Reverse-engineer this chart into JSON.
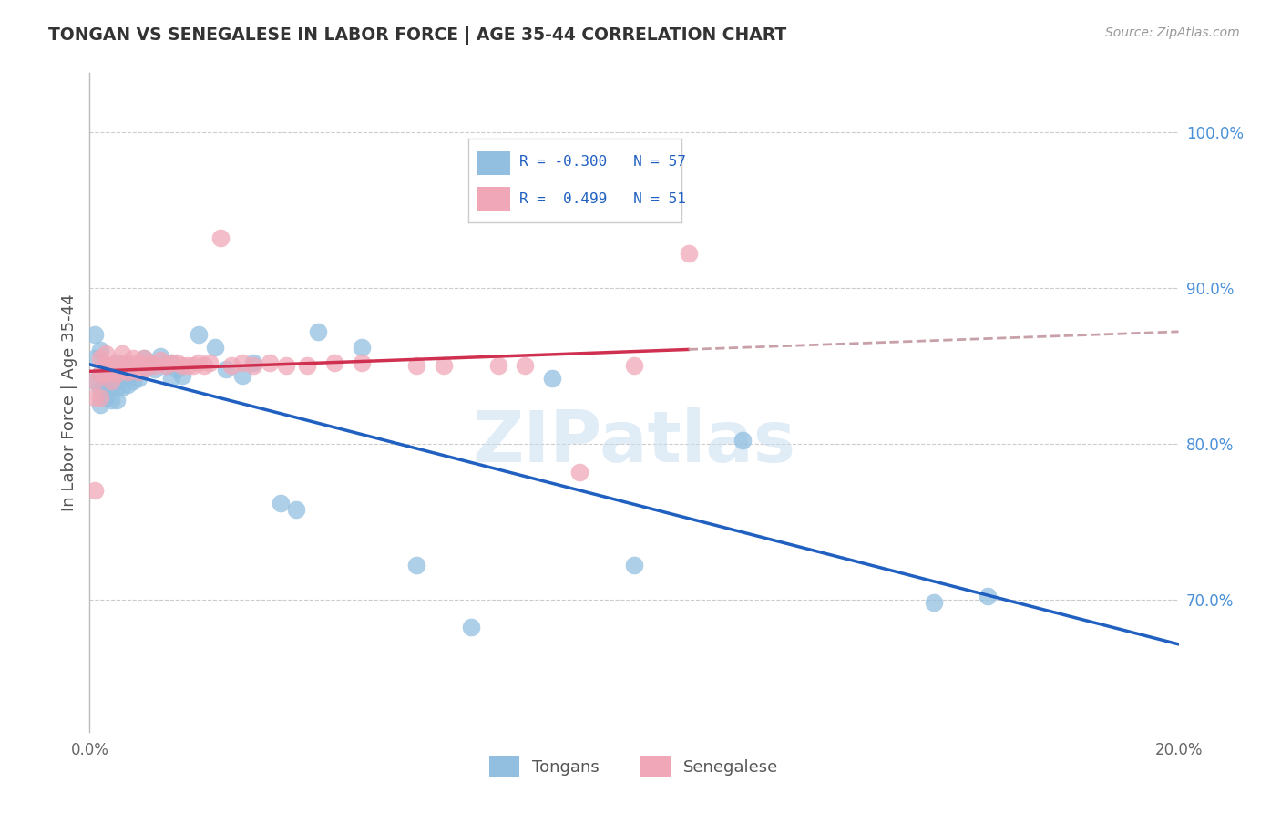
{
  "title": "TONGAN VS SENEGALESE IN LABOR FORCE | AGE 35-44 CORRELATION CHART",
  "source": "Source: ZipAtlas.com",
  "ylabel": "In Labor Force | Age 35-44",
  "ytick_labels": [
    "100.0%",
    "90.0%",
    "80.0%",
    "70.0%"
  ],
  "ytick_vals": [
    1.0,
    0.9,
    0.8,
    0.7
  ],
  "xtick_labels": [
    "0.0%",
    "20.0%"
  ],
  "xtick_vals": [
    0.0,
    0.2
  ],
  "xmin": 0.0,
  "xmax": 0.2,
  "ymin": 0.615,
  "ymax": 1.038,
  "r_tongans": "-0.300",
  "n_tongans": "57",
  "r_senegalese": "0.499",
  "n_senegalese": "51",
  "color_tongans": "#92bfe0",
  "color_senegalese": "#f0a8b8",
  "color_trend_tongans": "#2060c0",
  "color_trend_senegalese": "#d03050",
  "color_trend_ext": "#c8a0a8",
  "watermark": "ZIPatlas",
  "watermark_color": "#c8ddf0",
  "grid_color": "#cccccc",
  "tongans_x": [
    0.001,
    0.001,
    0.001,
    0.002,
    0.002,
    0.002,
    0.002,
    0.003,
    0.003,
    0.003,
    0.003,
    0.003,
    0.004,
    0.004,
    0.004,
    0.004,
    0.005,
    0.005,
    0.005,
    0.005,
    0.005,
    0.006,
    0.006,
    0.006,
    0.007,
    0.007,
    0.007,
    0.008,
    0.008,
    0.009,
    0.009,
    0.01,
    0.01,
    0.011,
    0.012,
    0.013,
    0.014,
    0.015,
    0.015,
    0.016,
    0.017,
    0.02,
    0.023,
    0.025,
    0.028,
    0.03,
    0.035,
    0.038,
    0.042,
    0.05,
    0.06,
    0.07,
    0.085,
    0.1,
    0.12,
    0.155,
    0.165
  ],
  "tongans_y": [
    0.87,
    0.855,
    0.84,
    0.86,
    0.845,
    0.835,
    0.825,
    0.85,
    0.845,
    0.84,
    0.838,
    0.83,
    0.848,
    0.842,
    0.836,
    0.828,
    0.852,
    0.846,
    0.84,
    0.836,
    0.828,
    0.848,
    0.842,
    0.836,
    0.85,
    0.844,
    0.838,
    0.846,
    0.84,
    0.848,
    0.842,
    0.855,
    0.848,
    0.85,
    0.848,
    0.856,
    0.85,
    0.852,
    0.842,
    0.848,
    0.844,
    0.87,
    0.862,
    0.848,
    0.844,
    0.852,
    0.762,
    0.758,
    0.872,
    0.862,
    0.722,
    0.682,
    0.842,
    0.722,
    0.802,
    0.698,
    0.702
  ],
  "senegalese_x": [
    0.001,
    0.001,
    0.001,
    0.002,
    0.002,
    0.002,
    0.003,
    0.003,
    0.003,
    0.004,
    0.004,
    0.005,
    0.005,
    0.006,
    0.006,
    0.007,
    0.007,
    0.008,
    0.008,
    0.009,
    0.009,
    0.01,
    0.01,
    0.011,
    0.012,
    0.013,
    0.014,
    0.015,
    0.016,
    0.017,
    0.018,
    0.019,
    0.02,
    0.021,
    0.022,
    0.024,
    0.026,
    0.028,
    0.03,
    0.033,
    0.036,
    0.04,
    0.045,
    0.05,
    0.06,
    0.065,
    0.075,
    0.08,
    0.09,
    0.1,
    0.11
  ],
  "senegalese_y": [
    0.84,
    0.83,
    0.77,
    0.855,
    0.845,
    0.83,
    0.858,
    0.85,
    0.845,
    0.85,
    0.84,
    0.852,
    0.845,
    0.858,
    0.848,
    0.852,
    0.846,
    0.855,
    0.848,
    0.852,
    0.846,
    0.855,
    0.848,
    0.852,
    0.85,
    0.854,
    0.85,
    0.852,
    0.852,
    0.85,
    0.85,
    0.85,
    0.852,
    0.85,
    0.852,
    0.932,
    0.85,
    0.852,
    0.85,
    0.852,
    0.85,
    0.85,
    0.852,
    0.852,
    0.85,
    0.85,
    0.85,
    0.85,
    0.782,
    0.85,
    0.922
  ]
}
